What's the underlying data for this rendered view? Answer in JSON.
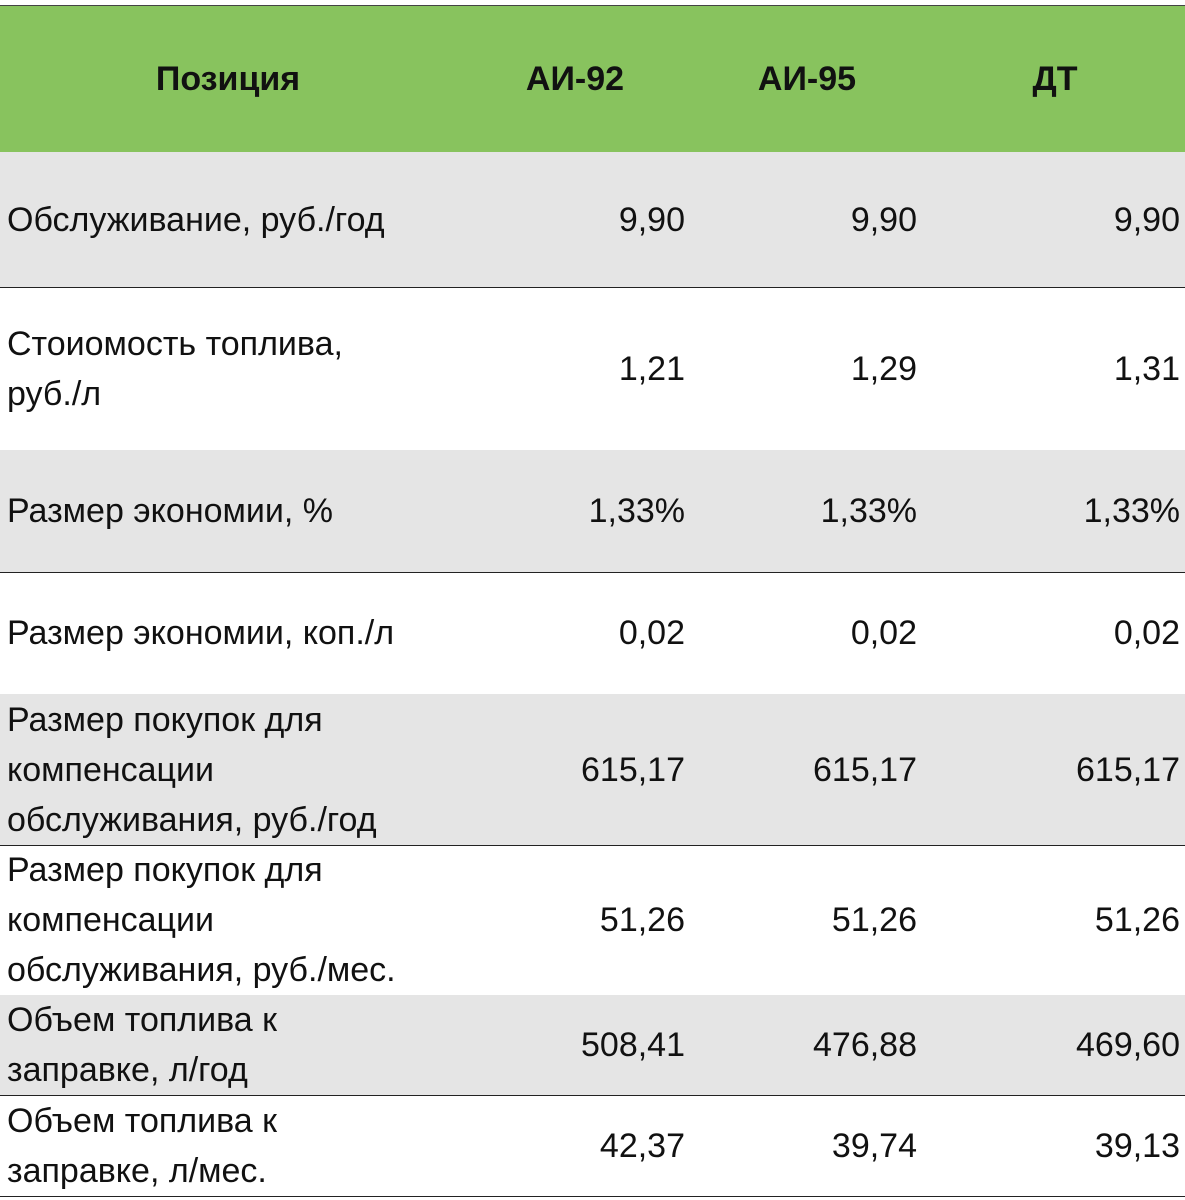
{
  "table": {
    "columns": [
      "Позиция",
      "АИ-92",
      "АИ-95",
      "ДТ"
    ],
    "rows": [
      {
        "label": [
          "Обслуживание, руб./год"
        ],
        "values": [
          "9,90",
          "9,90",
          "9,90"
        ]
      },
      {
        "label": [
          "Стоиомость топлива,",
          "руб./л"
        ],
        "values": [
          "1,21",
          "1,29",
          "1,31"
        ]
      },
      {
        "label": [
          "Размер экономии, %"
        ],
        "values": [
          "1,33%",
          "1,33%",
          "1,33%"
        ]
      },
      {
        "label": [
          "Размер экономии, коп./л"
        ],
        "values": [
          "0,02",
          "0,02",
          "0,02"
        ]
      },
      {
        "label": [
          "Размер покупок для",
          "компенсации",
          "обслуживания, руб./год"
        ],
        "values": [
          "615,17",
          "615,17",
          "615,17"
        ]
      },
      {
        "label": [
          "Размер покупок для",
          "компенсации",
          "обслуживания, руб./мес."
        ],
        "values": [
          "51,26",
          "51,26",
          "51,26"
        ]
      },
      {
        "label": [
          "Объем топлива к",
          "заправке, л/год"
        ],
        "values": [
          "508,41",
          "476,88",
          "469,60"
        ]
      },
      {
        "label": [
          "Объем топлива к",
          "заправке, л/мес."
        ],
        "values": [
          "42,37",
          "39,74",
          "39,13"
        ]
      }
    ]
  }
}
